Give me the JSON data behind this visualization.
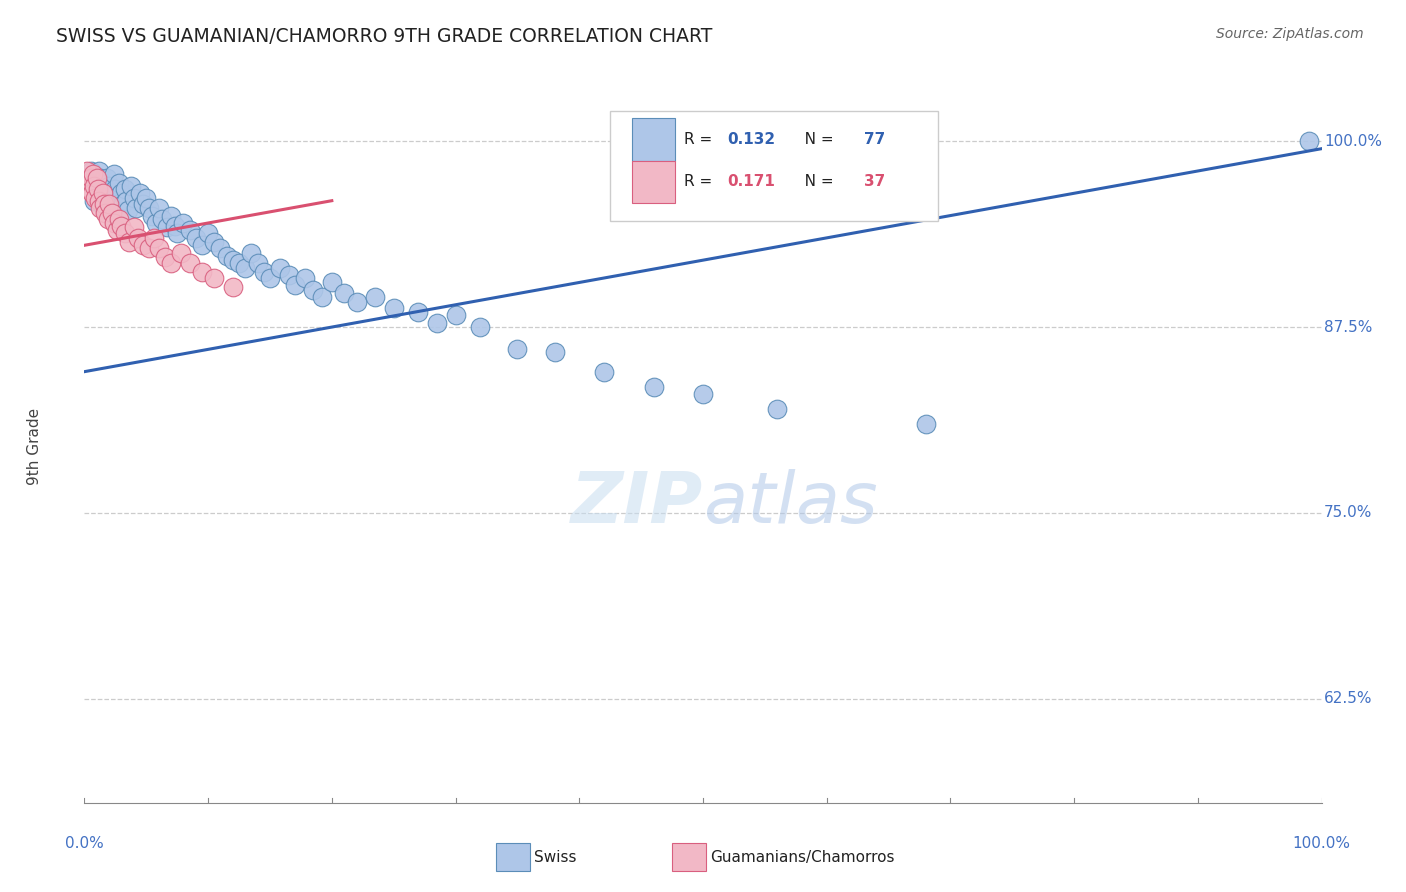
{
  "title": "SWISS VS GUAMANIAN/CHAMORRO 9TH GRADE CORRELATION CHART",
  "source": "Source: ZipAtlas.com",
  "ylabel": "9th Grade",
  "ytick_labels": [
    "100.0%",
    "87.5%",
    "75.0%",
    "62.5%"
  ],
  "ytick_values": [
    1.0,
    0.875,
    0.75,
    0.625
  ],
  "xmin": 0.0,
  "xmax": 1.0,
  "ymin": 0.555,
  "ymax": 1.035,
  "legend_swiss_R": "0.132",
  "legend_swiss_N": "77",
  "legend_guam_R": "0.171",
  "legend_guam_N": "37",
  "swiss_color": "#aec6e8",
  "swiss_edge_color": "#5b8db8",
  "guam_color": "#f2b8c6",
  "guam_edge_color": "#d95f7f",
  "trend_swiss_color": "#3060b0",
  "trend_guam_color": "#d95070",
  "background_color": "#ffffff",
  "swiss_trend_x": [
    0.0,
    1.0
  ],
  "swiss_trend_y": [
    0.845,
    0.995
  ],
  "guam_trend_x": [
    0.0,
    0.2
  ],
  "guam_trend_y": [
    0.93,
    0.96
  ],
  "swiss_points": [
    [
      0.005,
      0.98
    ],
    [
      0.007,
      0.97
    ],
    [
      0.008,
      0.96
    ],
    [
      0.01,
      0.972
    ],
    [
      0.01,
      0.965
    ],
    [
      0.012,
      0.98
    ],
    [
      0.013,
      0.975
    ],
    [
      0.014,
      0.968
    ],
    [
      0.015,
      0.962
    ],
    [
      0.016,
      0.955
    ],
    [
      0.018,
      0.975
    ],
    [
      0.019,
      0.965
    ],
    [
      0.02,
      0.97
    ],
    [
      0.021,
      0.96
    ],
    [
      0.022,
      0.95
    ],
    [
      0.024,
      0.978
    ],
    [
      0.025,
      0.968
    ],
    [
      0.026,
      0.958
    ],
    [
      0.028,
      0.972
    ],
    [
      0.03,
      0.965
    ],
    [
      0.031,
      0.958
    ],
    [
      0.033,
      0.968
    ],
    [
      0.034,
      0.96
    ],
    [
      0.035,
      0.954
    ],
    [
      0.038,
      0.97
    ],
    [
      0.04,
      0.962
    ],
    [
      0.042,
      0.955
    ],
    [
      0.045,
      0.965
    ],
    [
      0.047,
      0.958
    ],
    [
      0.05,
      0.962
    ],
    [
      0.052,
      0.955
    ],
    [
      0.055,
      0.95
    ],
    [
      0.058,
      0.945
    ],
    [
      0.06,
      0.955
    ],
    [
      0.063,
      0.948
    ],
    [
      0.067,
      0.942
    ],
    [
      0.07,
      0.95
    ],
    [
      0.073,
      0.943
    ],
    [
      0.075,
      0.938
    ],
    [
      0.08,
      0.945
    ],
    [
      0.085,
      0.94
    ],
    [
      0.09,
      0.935
    ],
    [
      0.095,
      0.93
    ],
    [
      0.1,
      0.938
    ],
    [
      0.105,
      0.932
    ],
    [
      0.11,
      0.928
    ],
    [
      0.115,
      0.923
    ],
    [
      0.12,
      0.92
    ],
    [
      0.125,
      0.918
    ],
    [
      0.13,
      0.915
    ],
    [
      0.135,
      0.925
    ],
    [
      0.14,
      0.918
    ],
    [
      0.145,
      0.912
    ],
    [
      0.15,
      0.908
    ],
    [
      0.158,
      0.915
    ],
    [
      0.165,
      0.91
    ],
    [
      0.17,
      0.903
    ],
    [
      0.178,
      0.908
    ],
    [
      0.185,
      0.9
    ],
    [
      0.192,
      0.895
    ],
    [
      0.2,
      0.905
    ],
    [
      0.21,
      0.898
    ],
    [
      0.22,
      0.892
    ],
    [
      0.235,
      0.895
    ],
    [
      0.25,
      0.888
    ],
    [
      0.27,
      0.885
    ],
    [
      0.285,
      0.878
    ],
    [
      0.3,
      0.883
    ],
    [
      0.32,
      0.875
    ],
    [
      0.35,
      0.86
    ],
    [
      0.38,
      0.858
    ],
    [
      0.42,
      0.845
    ],
    [
      0.46,
      0.835
    ],
    [
      0.5,
      0.83
    ],
    [
      0.56,
      0.82
    ],
    [
      0.68,
      0.81
    ],
    [
      0.99,
      1.0
    ]
  ],
  "guam_points": [
    [
      0.002,
      0.98
    ],
    [
      0.003,
      0.972
    ],
    [
      0.004,
      0.968
    ],
    [
      0.005,
      0.975
    ],
    [
      0.006,
      0.965
    ],
    [
      0.007,
      0.978
    ],
    [
      0.008,
      0.97
    ],
    [
      0.009,
      0.962
    ],
    [
      0.01,
      0.975
    ],
    [
      0.011,
      0.968
    ],
    [
      0.012,
      0.96
    ],
    [
      0.013,
      0.955
    ],
    [
      0.015,
      0.965
    ],
    [
      0.016,
      0.958
    ],
    [
      0.017,
      0.952
    ],
    [
      0.019,
      0.948
    ],
    [
      0.02,
      0.958
    ],
    [
      0.022,
      0.952
    ],
    [
      0.024,
      0.945
    ],
    [
      0.026,
      0.94
    ],
    [
      0.028,
      0.948
    ],
    [
      0.03,
      0.943
    ],
    [
      0.033,
      0.938
    ],
    [
      0.036,
      0.932
    ],
    [
      0.04,
      0.942
    ],
    [
      0.043,
      0.935
    ],
    [
      0.047,
      0.93
    ],
    [
      0.052,
      0.928
    ],
    [
      0.056,
      0.935
    ],
    [
      0.06,
      0.928
    ],
    [
      0.065,
      0.922
    ],
    [
      0.07,
      0.918
    ],
    [
      0.078,
      0.925
    ],
    [
      0.085,
      0.918
    ],
    [
      0.095,
      0.912
    ],
    [
      0.105,
      0.908
    ],
    [
      0.12,
      0.902
    ]
  ]
}
